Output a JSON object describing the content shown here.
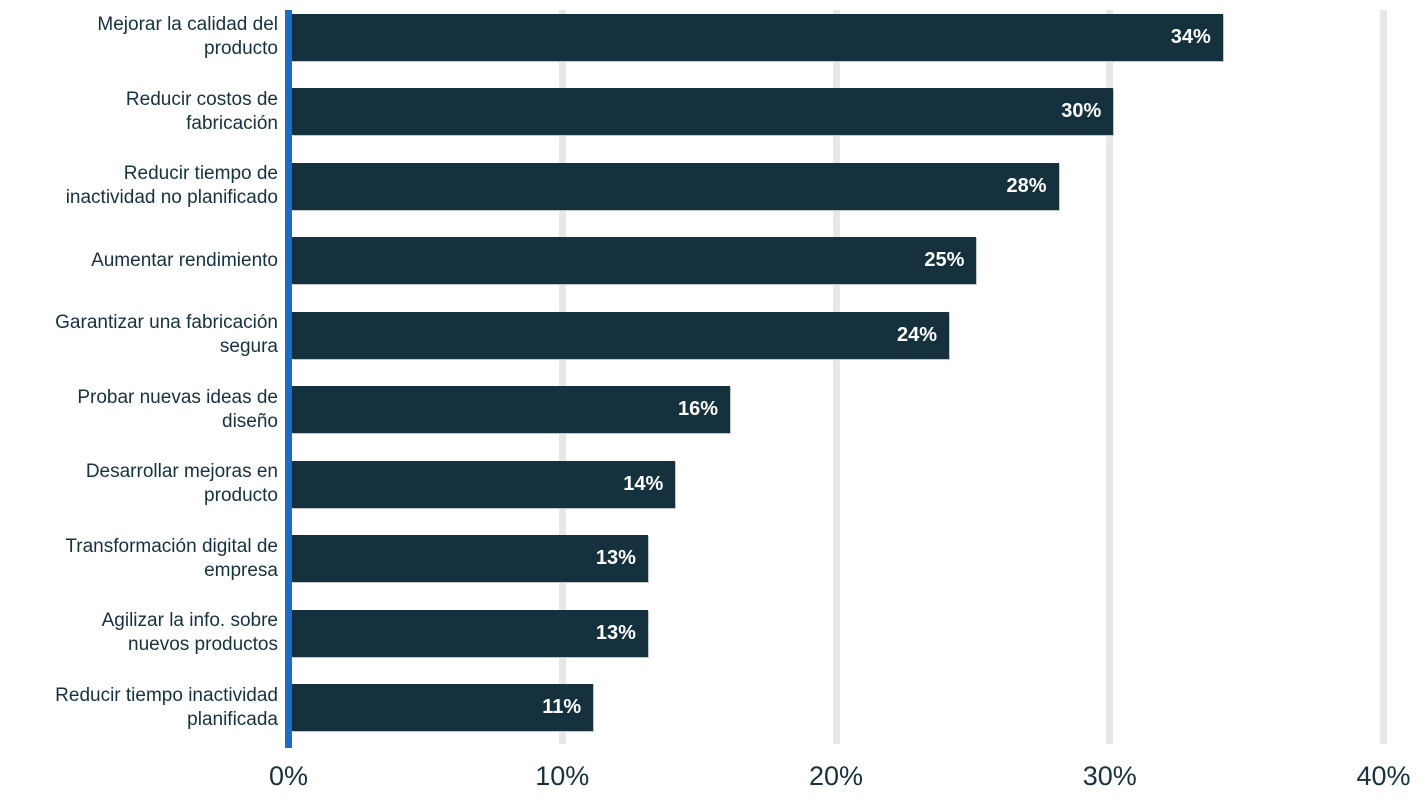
{
  "chart_data": {
    "type": "bar",
    "orientation": "horizontal",
    "title": "",
    "categories": [
      "Mejorar la calidad del\nproducto",
      "Reducir costos de\nfabricación",
      "Reducir tiempo de\ninactividad no planificado",
      "Aumentar rendimiento",
      "Garantizar una fabricación\nsegura",
      "Probar nuevas ideas de\ndiseño",
      "Desarrollar mejoras en\nproducto",
      "Transformación digital de\nempresa",
      "Agilizar la info. sobre\nnuevos productos",
      "Reducir tiempo inactividad\nplanificada"
    ],
    "values": [
      34,
      30,
      28,
      25,
      24,
      16,
      14,
      13,
      13,
      11
    ],
    "value_labels": [
      "34%",
      "30%",
      "28%",
      "25%",
      "24%",
      "16%",
      "14%",
      "13%",
      "13%",
      "11%"
    ],
    "x_axis": {
      "tick_values": [
        0,
        10,
        20,
        30,
        40
      ],
      "tick_labels": [
        "0%",
        "10%",
        "20%",
        "30%",
        "40%"
      ],
      "range": [
        0,
        40
      ]
    },
    "grid": "vertical-only",
    "legend": "none",
    "colors": {
      "bar": "#14313D",
      "axis_line": "#1B6CC2",
      "gridline": "#E8E8E8",
      "category_text": "#16323E",
      "tick_text": "#16323E",
      "value_text": "#FFFFFF",
      "background": "#FFFFFF"
    }
  }
}
